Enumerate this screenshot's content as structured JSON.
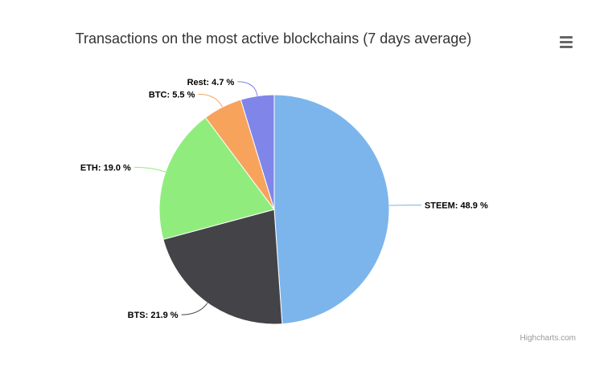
{
  "chart_data": {
    "type": "pie",
    "title": "Transactions on the most active blockchains (7 days average)",
    "unit": "%",
    "slices": [
      {
        "name": "STEEM",
        "value": 48.9,
        "label": "STEEM: 48.9 %",
        "color": "#7cb5ec"
      },
      {
        "name": "BTS",
        "value": 21.9,
        "label": "BTS: 21.9 %",
        "color": "#434348"
      },
      {
        "name": "ETH",
        "value": 19.0,
        "label": "ETH: 19.0 %",
        "color": "#90ed7d"
      },
      {
        "name": "BTC",
        "value": 5.5,
        "label": "BTC: 5.5 %",
        "color": "#f7a35c"
      },
      {
        "name": "Rest",
        "value": 4.7,
        "label": "Rest: 4.7 %",
        "color": "#8085e9"
      }
    ]
  },
  "menu": {
    "icon": "hamburger-menu-icon"
  },
  "credits": "Highcharts.com"
}
